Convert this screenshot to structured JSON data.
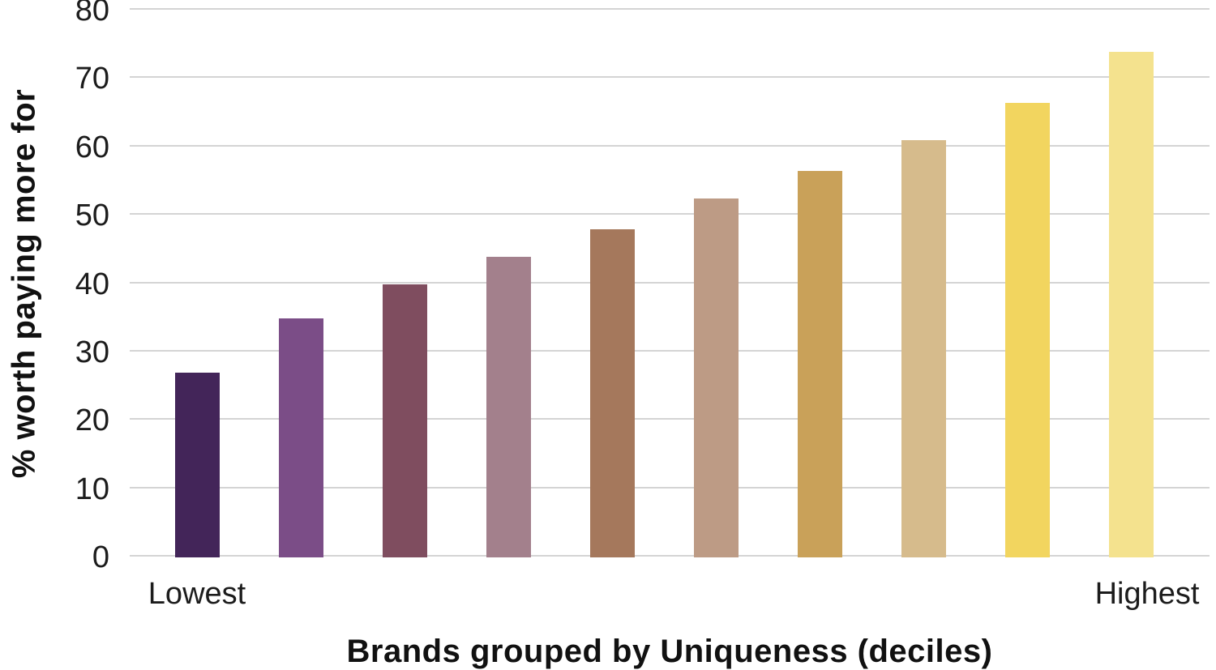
{
  "chart_data": {
    "type": "bar",
    "title": "",
    "xlabel": "Brands grouped by Uniqueness (deciles)",
    "ylabel": "% worth paying more for",
    "categories": [
      "Lowest",
      "",
      "",
      "",
      "",
      "",
      "",
      "",
      "",
      "Highest"
    ],
    "x_end_labels": {
      "left": "Lowest",
      "right": "Highest"
    },
    "values": [
      27,
      35,
      40,
      44,
      48,
      52.5,
      56.5,
      61,
      66.5,
      74
    ],
    "bar_colors": [
      "#432559",
      "#7b4d87",
      "#7f4d5f",
      "#a3808c",
      "#a5785c",
      "#bd9b85",
      "#c9a159",
      "#d6bb8c",
      "#f2d55f",
      "#f4e28e"
    ],
    "ylim": [
      0,
      80
    ],
    "yticks": [
      0,
      10,
      20,
      30,
      40,
      50,
      60,
      70,
      80
    ],
    "grid": "horizontal",
    "legend": "none"
  },
  "colors": {
    "background": "#ffffff",
    "gridline": "#d4d4d4",
    "text": "#1c1c1c"
  }
}
